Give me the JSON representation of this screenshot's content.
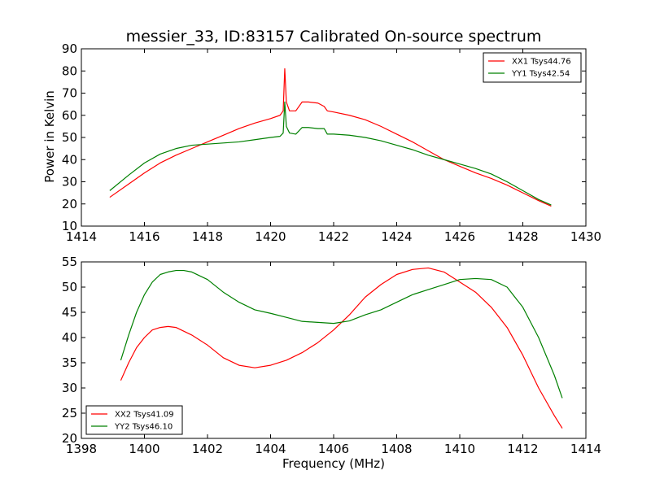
{
  "chart_data": [
    {
      "type": "line",
      "title": "messier_33, ID:83157 Calibrated On-source spectrum",
      "xlabel": "",
      "ylabel": "Power in Kelvin",
      "xlim": [
        1414,
        1430
      ],
      "ylim": [
        10,
        90
      ],
      "xticks": [
        1414,
        1416,
        1418,
        1420,
        1422,
        1424,
        1426,
        1428,
        1430
      ],
      "yticks": [
        10,
        20,
        30,
        40,
        50,
        60,
        70,
        80,
        90
      ],
      "grid": false,
      "legend_position": "top-right",
      "series": [
        {
          "name": "XX1 Tsys44.76",
          "color": "#ff0000",
          "x": [
            1414.9,
            1415.5,
            1416,
            1416.5,
            1417,
            1417.5,
            1418,
            1418.5,
            1419,
            1419.5,
            1420,
            1420.3,
            1420.4,
            1420.45,
            1420.5,
            1420.6,
            1420.8,
            1421,
            1421.2,
            1421.5,
            1421.7,
            1421.8,
            1422,
            1422.5,
            1423,
            1423.5,
            1424,
            1424.5,
            1425,
            1425.5,
            1426,
            1426.5,
            1427,
            1427.5,
            1428,
            1428.5,
            1428.9
          ],
          "y": [
            23,
            29,
            34,
            38.5,
            42,
            45,
            48,
            51,
            54,
            56.5,
            58.5,
            60,
            62,
            81,
            66,
            62,
            62,
            66,
            66,
            65.5,
            64,
            62,
            61.5,
            60,
            58,
            55,
            51.5,
            48,
            44,
            40,
            37,
            34,
            31.5,
            28.5,
            25,
            21.5,
            19
          ]
        },
        {
          "name": "YY1 Tsys42.54",
          "color": "#008000",
          "x": [
            1414.9,
            1415.5,
            1416,
            1416.5,
            1417,
            1417.5,
            1418,
            1418.5,
            1419,
            1419.5,
            1420,
            1420.3,
            1420.4,
            1420.45,
            1420.5,
            1420.6,
            1420.8,
            1421,
            1421.2,
            1421.5,
            1421.7,
            1421.8,
            1422,
            1422.5,
            1423,
            1423.5,
            1424,
            1424.5,
            1425,
            1425.5,
            1426,
            1426.5,
            1427,
            1427.5,
            1428,
            1428.5,
            1428.9
          ],
          "y": [
            26,
            33,
            38.5,
            42.5,
            45,
            46.5,
            47,
            47.5,
            48,
            49,
            50,
            50.5,
            52,
            66,
            55,
            52,
            51.5,
            54.5,
            54.5,
            54,
            54,
            51.5,
            51.5,
            51,
            50,
            48.5,
            46.5,
            44.5,
            42,
            40,
            38,
            36,
            33.5,
            30,
            26,
            22,
            19.5
          ]
        }
      ]
    },
    {
      "type": "line",
      "title": "",
      "xlabel": "Frequency (MHz)",
      "ylabel": "",
      "xlim": [
        1398,
        1414
      ],
      "ylim": [
        20,
        55
      ],
      "xticks": [
        1398,
        1400,
        1402,
        1404,
        1406,
        1408,
        1410,
        1412,
        1414
      ],
      "yticks": [
        20,
        25,
        30,
        35,
        40,
        45,
        50,
        55
      ],
      "grid": false,
      "legend_position": "bottom-left",
      "series": [
        {
          "name": "XX2 Tsys41.09",
          "color": "#ff0000",
          "x": [
            1399.25,
            1399.5,
            1399.75,
            1400,
            1400.25,
            1400.5,
            1400.75,
            1401,
            1401.5,
            1402,
            1402.5,
            1403,
            1403.5,
            1404,
            1404.5,
            1405,
            1405.5,
            1406,
            1406.5,
            1407,
            1407.5,
            1408,
            1408.5,
            1409,
            1409.5,
            1410,
            1410.5,
            1411,
            1411.5,
            1412,
            1412.5,
            1413,
            1413.25
          ],
          "y": [
            31.5,
            35,
            38,
            40,
            41.5,
            42,
            42.2,
            42,
            40.5,
            38.5,
            36,
            34.5,
            34,
            34.5,
            35.5,
            37,
            39,
            41.5,
            44.5,
            48,
            50.5,
            52.5,
            53.5,
            53.8,
            53,
            51,
            49,
            46,
            42,
            36.5,
            30,
            24.5,
            22
          ]
        },
        {
          "name": "YY2 Tsys46.10",
          "color": "#008000",
          "x": [
            1399.25,
            1399.5,
            1399.75,
            1400,
            1400.25,
            1400.5,
            1400.75,
            1401,
            1401.25,
            1401.5,
            1402,
            1402.5,
            1403,
            1403.5,
            1404,
            1404.5,
            1405,
            1405.5,
            1406,
            1406.5,
            1407,
            1407.5,
            1408,
            1408.5,
            1409,
            1409.5,
            1410,
            1410.5,
            1411,
            1411.5,
            1412,
            1412.5,
            1413,
            1413.25
          ],
          "y": [
            35.5,
            40.5,
            45,
            48.5,
            51,
            52.5,
            53,
            53.3,
            53.3,
            53,
            51.5,
            49,
            47,
            45.5,
            44.8,
            44,
            43.2,
            43,
            42.8,
            43.3,
            44.5,
            45.5,
            47,
            48.5,
            49.5,
            50.5,
            51.5,
            51.7,
            51.5,
            50,
            46,
            40,
            32.5,
            28
          ]
        }
      ]
    }
  ]
}
